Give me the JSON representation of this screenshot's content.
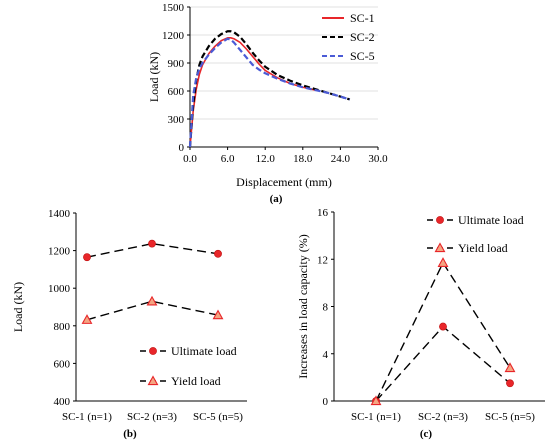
{
  "chart_data": [
    {
      "type": "line",
      "caption": "(a)",
      "xlabel": "Displacement (mm)",
      "ylabel": "Load (kN)",
      "xlim": [
        0,
        30
      ],
      "ylim": [
        0,
        1500
      ],
      "xticks": [
        "0.0",
        "6.0",
        "12.0",
        "18.0",
        "24.0",
        "30.0"
      ],
      "yticks": [
        "0",
        "300",
        "600",
        "900",
        "1200",
        "1500"
      ],
      "legend_position": "top-right",
      "series": [
        {
          "name": "SC-1",
          "color": "#e8262a",
          "dash": "solid",
          "x": [
            0,
            0.5,
            1.0,
            1.5,
            2.0,
            3.0,
            4.0,
            5.0,
            6.0,
            6.5,
            7.0,
            8.0,
            9.0,
            10.0,
            11.0,
            12.0,
            14.0,
            16.0,
            18.0,
            20.0
          ],
          "y": [
            0,
            380,
            620,
            780,
            880,
            1000,
            1080,
            1140,
            1170,
            1170,
            1160,
            1120,
            1050,
            970,
            890,
            820,
            740,
            680,
            640,
            610
          ]
        },
        {
          "name": "SC-2",
          "color": "#000000",
          "dash": "dash",
          "x": [
            0,
            0.5,
            1.0,
            1.5,
            2.0,
            3.0,
            4.0,
            5.0,
            6.0,
            6.5,
            7.0,
            8.0,
            9.0,
            10.0,
            11.0,
            12.0,
            14.0,
            16.0,
            18.0,
            20.0,
            22.0,
            24.0,
            25.5
          ],
          "y": [
            0,
            450,
            720,
            880,
            970,
            1080,
            1160,
            1210,
            1240,
            1240,
            1230,
            1180,
            1100,
            1010,
            930,
            860,
            770,
            710,
            660,
            620,
            580,
            540,
            510
          ]
        },
        {
          "name": "SC-5",
          "color": "#4b5bd6",
          "dash": "dash",
          "x": [
            0,
            0.5,
            1.0,
            1.5,
            2.0,
            3.0,
            4.0,
            5.0,
            6.0,
            6.5,
            7.0,
            8.0,
            9.0,
            10.0,
            11.0,
            12.0,
            14.0,
            16.0,
            18.0,
            20.0,
            22.0,
            24.0,
            25.5
          ],
          "y": [
            0,
            550,
            740,
            840,
            900,
            990,
            1060,
            1120,
            1160,
            1150,
            1120,
            1040,
            960,
            880,
            830,
            790,
            730,
            680,
            640,
            610,
            580,
            540,
            510
          ]
        }
      ]
    },
    {
      "type": "line",
      "caption": "(b)",
      "xlabel": "",
      "ylabel": "Load (kN)",
      "categories": [
        "SC-1 (n=1)",
        "SC-2 (n=3)",
        "SC-5 (n=5)"
      ],
      "ylim": [
        400,
        1400
      ],
      "yticks": [
        "400",
        "600",
        "800",
        "1000",
        "1200",
        "1400"
      ],
      "legend_position": "bottom-right",
      "series": [
        {
          "name": "Ultimate load",
          "marker": "circle",
          "values": [
            1165,
            1237,
            1183
          ]
        },
        {
          "name": "Yield load",
          "marker": "triangle",
          "values": [
            832,
            930,
            857
          ]
        }
      ]
    },
    {
      "type": "line",
      "caption": "(c)",
      "xlabel": "",
      "ylabel": "Increases in load capacity (%)",
      "categories": [
        "SC-1 (n=1)",
        "SC-2 (n=3)",
        "SC-5 (n=5)"
      ],
      "ylim": [
        0,
        16
      ],
      "yticks": [
        "0",
        "4",
        "8",
        "12",
        "16"
      ],
      "legend_position": "top-right",
      "series": [
        {
          "name": "Ultimate load",
          "marker": "circle",
          "values": [
            0,
            6.3,
            1.5
          ]
        },
        {
          "name": "Yield load",
          "marker": "triangle",
          "values": [
            0,
            11.7,
            2.8
          ]
        }
      ]
    }
  ],
  "colors": {
    "marker_fill": "#e8262a",
    "triangle_fill": "#f4a582",
    "triangle_stroke": "#e8262a",
    "axis": "#000000",
    "grid": "#d9d9d9"
  }
}
